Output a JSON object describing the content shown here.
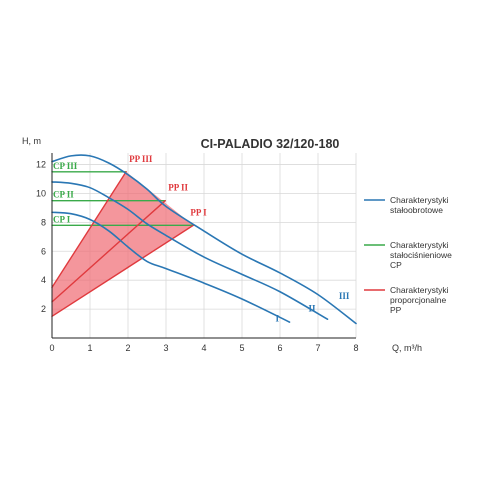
{
  "chart_data": {
    "type": "line",
    "title": "CI-PALADIO 32/120-180",
    "xlabel": "Q, m³/h",
    "ylabel": "H, m",
    "xlim": [
      0,
      8
    ],
    "ylim": [
      0,
      12.8
    ],
    "xticks": [
      0,
      1,
      2,
      3,
      4,
      5,
      6,
      7,
      8
    ],
    "yticks": [
      2,
      4,
      6,
      8,
      10,
      12
    ],
    "grid": true,
    "colors": {
      "constant_speed": "#2a77b4",
      "constant_pressure": "#3aaa4a",
      "proportional_pressure": "#e03a3e",
      "pp_fill": "#ef6a72"
    },
    "series": [
      {
        "name": "I",
        "group": "constant_speed",
        "x": [
          0,
          0.5,
          1.0,
          1.5,
          2.0,
          2.5,
          3.0,
          4.0,
          5.0,
          6.25
        ],
        "y": [
          8.7,
          8.6,
          8.2,
          7.4,
          6.3,
          5.3,
          4.8,
          3.8,
          2.7,
          1.1
        ]
      },
      {
        "name": "II",
        "group": "constant_speed",
        "x": [
          0,
          0.5,
          1.0,
          1.5,
          2.0,
          2.5,
          3.0,
          4.0,
          5.0,
          6.0,
          7.25
        ],
        "y": [
          10.8,
          10.7,
          10.4,
          9.7,
          8.9,
          7.9,
          7.1,
          5.6,
          4.4,
          3.2,
          1.3
        ]
      },
      {
        "name": "III",
        "group": "constant_speed",
        "x": [
          0,
          0.5,
          1.0,
          1.5,
          2.0,
          2.5,
          3.0,
          4.0,
          5.0,
          6.0,
          7.0,
          8.0
        ],
        "y": [
          12.2,
          12.6,
          12.6,
          12.1,
          11.3,
          10.3,
          9.1,
          7.4,
          5.8,
          4.5,
          3.0,
          1.0
        ]
      },
      {
        "name": "CP I",
        "group": "constant_pressure",
        "x": [
          0,
          3.72
        ],
        "y": [
          7.8,
          7.8
        ]
      },
      {
        "name": "CP II",
        "group": "constant_pressure",
        "x": [
          0,
          2.98
        ],
        "y": [
          9.5,
          9.5
        ]
      },
      {
        "name": "CP III",
        "group": "constant_pressure",
        "x": [
          0,
          1.95
        ],
        "y": [
          11.5,
          11.5
        ]
      },
      {
        "name": "PP I",
        "group": "proportional_pressure",
        "x": [
          0,
          3.72
        ],
        "y": [
          1.5,
          7.8
        ]
      },
      {
        "name": "PP II",
        "group": "proportional_pressure",
        "x": [
          0,
          2.98
        ],
        "y": [
          2.5,
          9.5
        ]
      },
      {
        "name": "PP III",
        "group": "proportional_pressure",
        "x": [
          0,
          1.95
        ],
        "y": [
          3.5,
          11.5
        ]
      }
    ],
    "pp_region": {
      "x": [
        0,
        1.95,
        3.72,
        0
      ],
      "y": [
        3.5,
        11.5,
        7.8,
        1.5
      ]
    },
    "legend": {
      "placement": "right",
      "items": [
        {
          "lines": [
            "Charakterystyki",
            "stałoobrotowe"
          ],
          "color": "#2a77b4"
        },
        {
          "lines": [
            "Charakterystyki",
            "stałociśnieniowe",
            "CP"
          ],
          "color": "#3aaa4a"
        },
        {
          "lines": [
            "Charakterystyki",
            "proporcjonalne",
            "PP"
          ],
          "color": "#e03a3e"
        }
      ]
    }
  }
}
